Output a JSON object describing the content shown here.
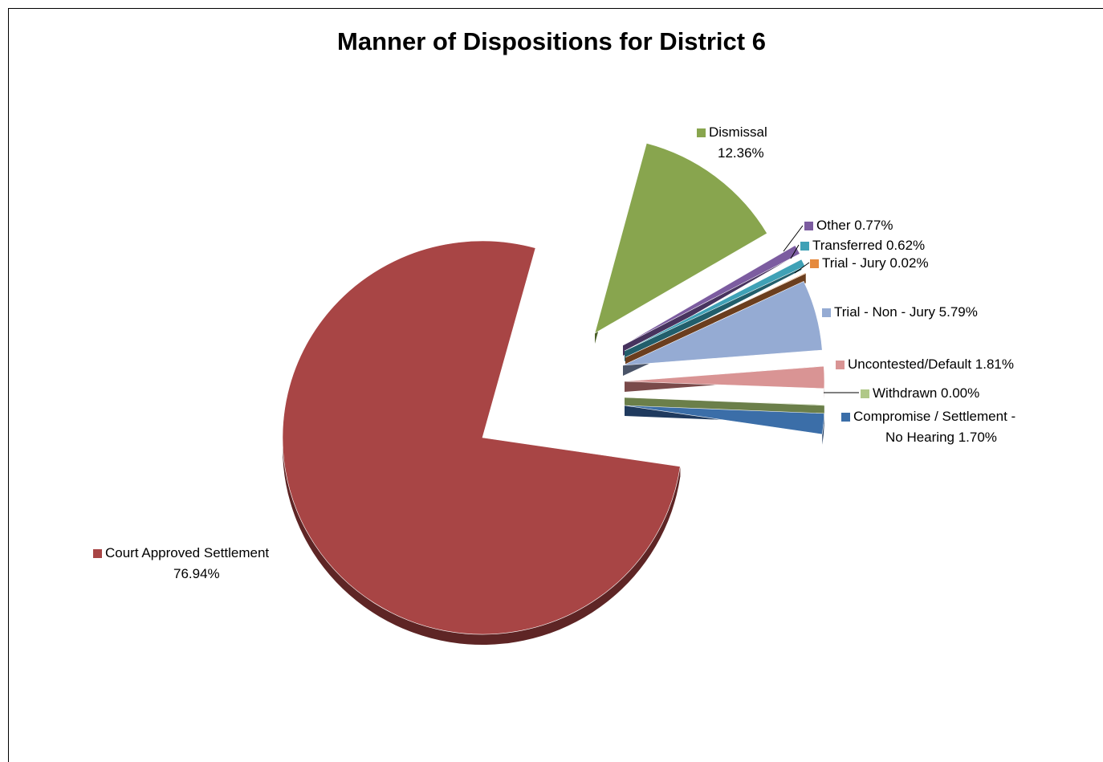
{
  "chart_data": {
    "type": "pie",
    "title": "Manner of Dispositions for District 6",
    "slices": [
      {
        "label": "Court Approved Settlement",
        "value": 76.94,
        "value_text": "76.94%",
        "color": "#A84545",
        "side_color": "#5E2525"
      },
      {
        "label": "Dismissal",
        "value": 12.36,
        "value_text": "12.36%",
        "color": "#88A54E",
        "side_color": "#4A5F28"
      },
      {
        "label": "Other",
        "value": 0.77,
        "value_text": "0.77%",
        "color": "#7C5CA0",
        "side_color": "#47335E"
      },
      {
        "label": "Transferred",
        "value": 0.62,
        "value_text": "0.62%",
        "color": "#3FA1B6",
        "side_color": "#215E6B"
      },
      {
        "label": "Trial - Jury",
        "value": 0.02,
        "value_text": "0.02%",
        "color": "#E58A3E",
        "side_color": "#6B3E1E"
      },
      {
        "label": "Trial - Non - Jury",
        "value": 5.79,
        "value_text": "5.79%",
        "color": "#95ABD3",
        "side_color": "#4A5468"
      },
      {
        "label": "Uncontested/Default",
        "value": 1.81,
        "value_text": "1.81%",
        "color": "#D99494",
        "side_color": "#7A4A4A"
      },
      {
        "label": "Withdrawn",
        "value": 0.0,
        "value_text": "0.00%",
        "color": "#B0C888",
        "side_color": "#6B7F4A"
      },
      {
        "label": "Compromise / Settlement - No Hearing",
        "value": 1.7,
        "value_text": "1.70%",
        "color": "#3B6EA8",
        "side_color": "#1F3A5E"
      }
    ],
    "label_lines": {
      "court_line1": "Court Approved Settlement",
      "court_line2": "76.94%",
      "dismissal_line1": "Dismissal",
      "dismissal_line2": "12.36%",
      "other": "Other 0.77%",
      "transferred": "Transferred 0.62%",
      "trial_jury": "Trial - Jury 0.02%",
      "trial_non_jury": "Trial - Non - Jury 5.79%",
      "uncontested": "Uncontested/Default 1.81%",
      "withdrawn": "Withdrawn  0.00%",
      "compromise_line1": "Compromise / Settlement -",
      "compromise_line2": "No Hearing 1.70%"
    }
  }
}
